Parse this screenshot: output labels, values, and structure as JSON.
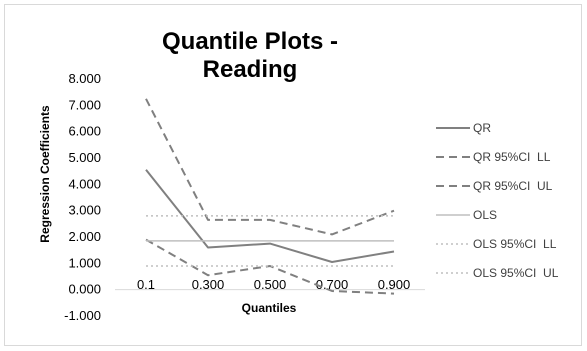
{
  "chart_data": {
    "type": "line",
    "title": "Quantile Plots - Reading",
    "xlabel": "Quantiles",
    "ylabel": "Regression Coefficients",
    "categories": [
      "0.1",
      "0.300",
      "0.500",
      "0.700",
      "0.900"
    ],
    "ylim": [
      -1,
      8
    ],
    "yticks": [
      "-1.000",
      "0.000",
      "1.000",
      "2.000",
      "3.000",
      "4.000",
      "5.000",
      "6.000",
      "7.000",
      "8.000"
    ],
    "grid": false,
    "legend_position": "right",
    "series": [
      {
        "name": "QR",
        "values": [
          4.55,
          1.6,
          1.75,
          1.05,
          1.45
        ],
        "color": "#808080",
        "style": "solid",
        "width": 2
      },
      {
        "name": "QR 95%CI  LL",
        "values": [
          1.9,
          0.55,
          0.9,
          -0.05,
          -0.15
        ],
        "color": "#808080",
        "style": "dashed",
        "width": 2
      },
      {
        "name": "QR 95%CI  UL",
        "values": [
          7.25,
          2.65,
          2.65,
          2.1,
          3.0
        ],
        "color": "#808080",
        "style": "dashed",
        "width": 2
      },
      {
        "name": "OLS",
        "values": [
          1.85,
          1.85,
          1.85,
          1.85,
          1.85
        ],
        "color": "#bfbfbf",
        "style": "solid",
        "width": 1.5
      },
      {
        "name": "OLS 95%CI  LL",
        "values": [
          0.9,
          0.9,
          0.9,
          0.9,
          0.9
        ],
        "color": "#bfbfbf",
        "style": "dotted",
        "width": 1.5
      },
      {
        "name": "OLS 95%CI  UL",
        "values": [
          2.8,
          2.8,
          2.8,
          2.8,
          2.8
        ],
        "color": "#bfbfbf",
        "style": "dotted",
        "width": 1.5
      }
    ]
  }
}
